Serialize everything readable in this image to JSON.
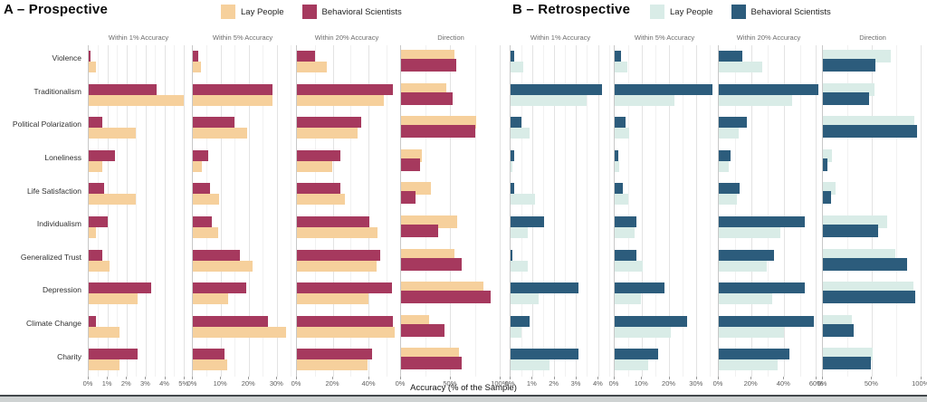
{
  "chart_data": {
    "type": "bar",
    "orientation": "horizontal",
    "axis_title": "Accuracy (% of the Sample)",
    "categories": [
      "Violence",
      "Traditionalism",
      "Political Polarization",
      "Loneliness",
      "Life Satisfaction",
      "Individualism",
      "Generalized Trust",
      "Depression",
      "Climate Change",
      "Charity"
    ],
    "panels": [
      {
        "id": "A",
        "title": "A – Prospective",
        "colors": {
          "lay": "#F6D09C",
          "sci": "#A6395E"
        },
        "legend": [
          {
            "label": "Lay People",
            "series": "lay"
          },
          {
            "label": "Behavioral Scientists",
            "series": "sci"
          }
        ],
        "facets": [
          {
            "title": "Within 1% Accuracy",
            "style": "dodge",
            "order": [
              "sci",
              "lay"
            ],
            "xmax": 5.3,
            "ticks": [
              0,
              1,
              2,
              3,
              4,
              5
            ],
            "tick_labels": [
              "0%",
              "1%",
              "2%",
              "3%",
              "4%",
              "5%"
            ],
            "sci": [
              0.1,
              3.6,
              0.7,
              1.4,
              0.8,
              1.0,
              0.7,
              3.3,
              0.4,
              2.6
            ],
            "lay": [
              0.4,
              5.0,
              2.5,
              0.7,
              2.5,
              0.4,
              1.1,
              2.6,
              1.6,
              1.6
            ]
          },
          {
            "title": "Within 5% Accuracy",
            "style": "dodge",
            "order": [
              "sci",
              "lay"
            ],
            "xmax": 36,
            "ticks": [
              0,
              10,
              20,
              30
            ],
            "tick_labels": [
              "0%",
              "10%",
              "20%",
              "30%"
            ],
            "sci": [
              1.9,
              28.5,
              14.8,
              5.6,
              6.2,
              6.8,
              17.0,
              19.2,
              27.0,
              11.2
            ],
            "lay": [
              3.0,
              28.6,
              19.5,
              3.4,
              9.5,
              9.0,
              21.5,
              12.7,
              33.5,
              12.4
            ]
          },
          {
            "title": "Within 20% Accuracy",
            "style": "dodge",
            "order": [
              "sci",
              "lay"
            ],
            "xmax": 56,
            "ticks": [
              0,
              20,
              40
            ],
            "tick_labels": [
              "0%",
              "20%",
              "40%"
            ],
            "sci": [
              10.3,
              53.5,
              36.0,
              24.3,
              24.0,
              40.5,
              46.5,
              53.2,
              53.7,
              42.0
            ],
            "lay": [
              16.6,
              48.6,
              33.7,
              19.8,
              26.7,
              44.7,
              44.5,
              40.0,
              54.4,
              39.6
            ]
          },
          {
            "title": "Direction",
            "style": "overlap",
            "order": [
              "lay",
              "sci"
            ],
            "xmax": 102,
            "ticks": [
              0,
              50,
              100
            ],
            "tick_labels": [
              "0%",
              "50%",
              "100%"
            ],
            "lay": [
              54.0,
              45.7,
              76.7,
              21.0,
              30.0,
              56.7,
              54.0,
              83.3,
              28.3,
              59.0
            ],
            "sci": [
              56.0,
              52.3,
              75.0,
              19.3,
              15.0,
              37.3,
              61.7,
              90.7,
              44.0,
              61.7
            ]
          }
        ]
      },
      {
        "id": "B",
        "title": "B – Retrospective",
        "colors": {
          "lay": "#D9ECE7",
          "sci": "#2C5C7C"
        },
        "legend": [
          {
            "label": "Lay People",
            "series": "lay"
          },
          {
            "label": "Behavioral Scientists",
            "series": "sci"
          }
        ],
        "facets": [
          {
            "title": "Within 1% Accuracy",
            "style": "dodge",
            "order": [
              "sci",
              "lay"
            ],
            "xmax": 4.6,
            "ticks": [
              0,
              1,
              2,
              3,
              4
            ],
            "tick_labels": [
              "0%",
              "1%",
              "2%",
              "3%",
              "4%"
            ],
            "sci": [
              0.15,
              4.2,
              0.5,
              0.17,
              0.15,
              1.55,
              0.1,
              3.1,
              0.85,
              3.1
            ],
            "lay": [
              0.6,
              3.5,
              0.85,
              0.1,
              1.1,
              0.8,
              0.8,
              1.3,
              0.5,
              1.8
            ]
          },
          {
            "title": "Within 5% Accuracy",
            "style": "dodge",
            "order": [
              "sci",
              "lay"
            ],
            "xmax": 37,
            "ticks": [
              0,
              10,
              20,
              30
            ],
            "tick_labels": [
              "0%",
              "10%",
              "20%",
              "30%"
            ],
            "sci": [
              2.4,
              36.0,
              3.9,
              1.4,
              3.0,
              8.0,
              7.9,
              18.3,
              26.5,
              15.9
            ],
            "lay": [
              4.6,
              22.0,
              5.2,
              1.7,
              4.9,
              7.2,
              10.2,
              9.5,
              20.6,
              12.2
            ]
          },
          {
            "title": "Within 20% Accuracy",
            "style": "dodge",
            "order": [
              "sci",
              "lay"
            ],
            "xmax": 62,
            "ticks": [
              0,
              20,
              40,
              60
            ],
            "tick_labels": [
              "0%",
              "20%",
              "40%",
              "60%"
            ],
            "sci": [
              14.4,
              61.3,
              17.1,
              7.0,
              12.9,
              52.9,
              33.8,
              53.3,
              58.6,
              43.8
            ],
            "lay": [
              26.6,
              45.5,
              12.3,
              6.3,
              11.2,
              38.0,
              29.6,
              32.8,
              40.2,
              36.4
            ]
          },
          {
            "title": "Direction",
            "style": "overlap",
            "order": [
              "lay",
              "sci"
            ],
            "xmax": 103,
            "ticks": [
              0,
              50,
              100
            ],
            "tick_labels": [
              "0%",
              "50%",
              "100%"
            ],
            "lay": [
              69.5,
              53.0,
              93.5,
              9.2,
              13.4,
              65.6,
              74.0,
              92.4,
              29.4,
              51.1
            ],
            "sci": [
              53.4,
              47.7,
              96.2,
              4.6,
              8.4,
              56.9,
              86.6,
              95.0,
              32.0,
              49.2
            ]
          }
        ]
      }
    ]
  }
}
